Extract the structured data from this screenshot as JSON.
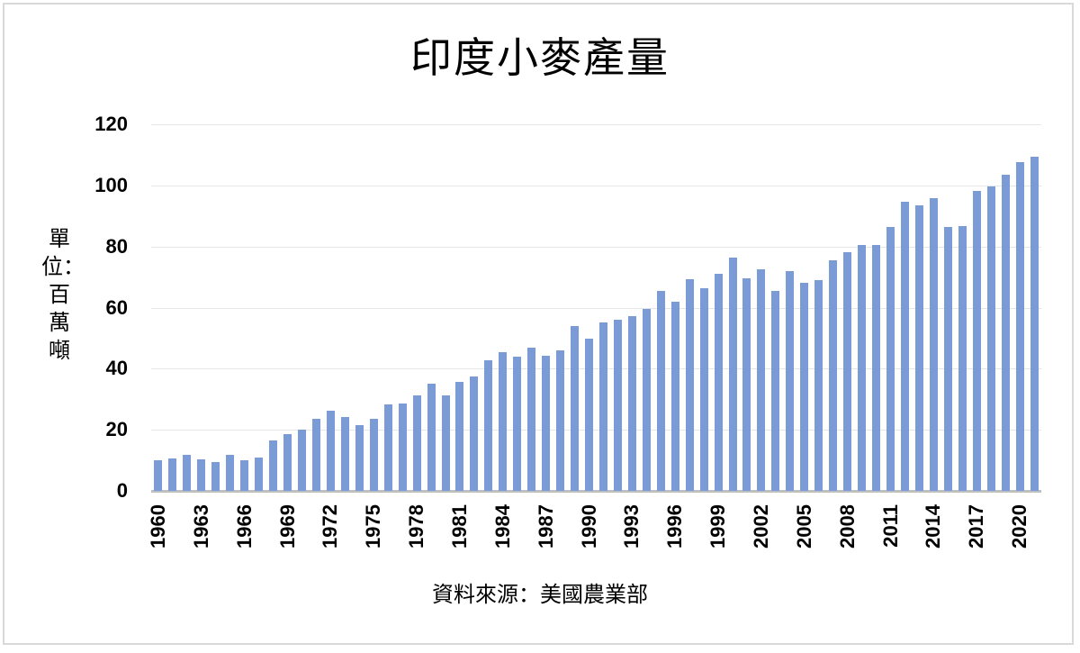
{
  "chart_data": {
    "type": "bar",
    "title": "印度小麥產量",
    "xlabel": "資料來源：美國農業部",
    "ylabel": "單位：百萬噸",
    "ylim": [
      0,
      120
    ],
    "yticks": [
      0,
      20,
      40,
      60,
      80,
      100,
      120
    ],
    "grid": true,
    "legend": null,
    "bar_color": "#7b9bd6",
    "x_tick_labels": [
      "1960",
      "1963",
      "1966",
      "1969",
      "1972",
      "1975",
      "1978",
      "1981",
      "1984",
      "1987",
      "1990",
      "1993",
      "1996",
      "1999",
      "2002",
      "2005",
      "2008",
      "2011",
      "2014",
      "2017",
      "2020"
    ],
    "categories": [
      "1960",
      "1961",
      "1962",
      "1963",
      "1964",
      "1965",
      "1966",
      "1967",
      "1968",
      "1969",
      "1970",
      "1971",
      "1972",
      "1973",
      "1974",
      "1975",
      "1976",
      "1977",
      "1978",
      "1979",
      "1980",
      "1981",
      "1982",
      "1983",
      "1984",
      "1985",
      "1986",
      "1987",
      "1988",
      "1989",
      "1990",
      "1991",
      "1992",
      "1993",
      "1994",
      "1995",
      "1996",
      "1997",
      "1998",
      "1999",
      "2000",
      "2001",
      "2002",
      "2003",
      "2004",
      "2005",
      "2006",
      "2007",
      "2008",
      "2009",
      "2010",
      "2011",
      "2012",
      "2013",
      "2014",
      "2015",
      "2016",
      "2017",
      "2018",
      "2019",
      "2020",
      "2021"
    ],
    "values": [
      10.0,
      10.6,
      11.7,
      10.4,
      9.5,
      11.9,
      10.0,
      11.0,
      16.4,
      18.5,
      20.0,
      23.5,
      26.1,
      24.3,
      21.4,
      23.7,
      28.4,
      28.6,
      31.4,
      35.2,
      31.4,
      35.8,
      37.4,
      42.8,
      45.5,
      44.0,
      46.9,
      44.2,
      46.1,
      54.1,
      49.9,
      55.2,
      55.9,
      57.2,
      59.7,
      65.4,
      62.0,
      69.2,
      66.2,
      71.1,
      76.4,
      69.5,
      72.6,
      65.6,
      71.8,
      68.2,
      69.0,
      75.4,
      78.2,
      80.4,
      80.6,
      86.4,
      94.6,
      93.4,
      95.8,
      86.3,
      86.8,
      98.3,
      99.8,
      103.5,
      107.7,
      109.4
    ]
  }
}
